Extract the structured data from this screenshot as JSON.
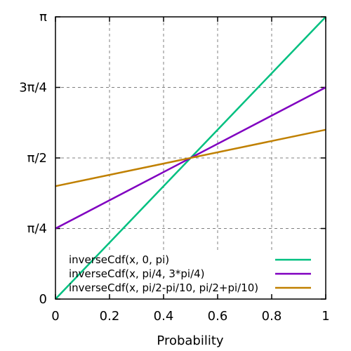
{
  "chart_data": {
    "type": "line",
    "title": "",
    "xlabel": "Probability",
    "ylabel": "",
    "xlim": [
      0,
      1
    ],
    "ylim": [
      0,
      3.14159265
    ],
    "grid": true,
    "legend_position": "bottom",
    "x_ticks": [
      {
        "value": 0,
        "label": "0"
      },
      {
        "value": 0.2,
        "label": "0.2"
      },
      {
        "value": 0.4,
        "label": "0.4"
      },
      {
        "value": 0.6,
        "label": "0.6"
      },
      {
        "value": 0.8,
        "label": "0.8"
      },
      {
        "value": 1,
        "label": "1"
      }
    ],
    "y_ticks": [
      {
        "value": 0,
        "label": "0"
      },
      {
        "value": 0.78539816,
        "label": "π/4"
      },
      {
        "value": 1.57079633,
        "label": "π/2"
      },
      {
        "value": 2.35619449,
        "label": "3π/4"
      },
      {
        "value": 3.14159265,
        "label": "π"
      }
    ],
    "series": [
      {
        "name": "inverseCdf(x, 0, pi)",
        "color": "#00c080",
        "x": [
          0,
          1
        ],
        "y": [
          0,
          3.14159265
        ]
      },
      {
        "name": "inverseCdf(x, pi/4, 3*pi/4)",
        "color": "#8000c0",
        "x": [
          0,
          1
        ],
        "y": [
          0.78539816,
          2.35619449
        ]
      },
      {
        "name": "inverseCdf(x, pi/2-pi/10, pi/2+pi/10)",
        "color": "#c08000",
        "x": [
          0,
          1
        ],
        "y": [
          1.25663706,
          1.88495559
        ]
      }
    ]
  }
}
